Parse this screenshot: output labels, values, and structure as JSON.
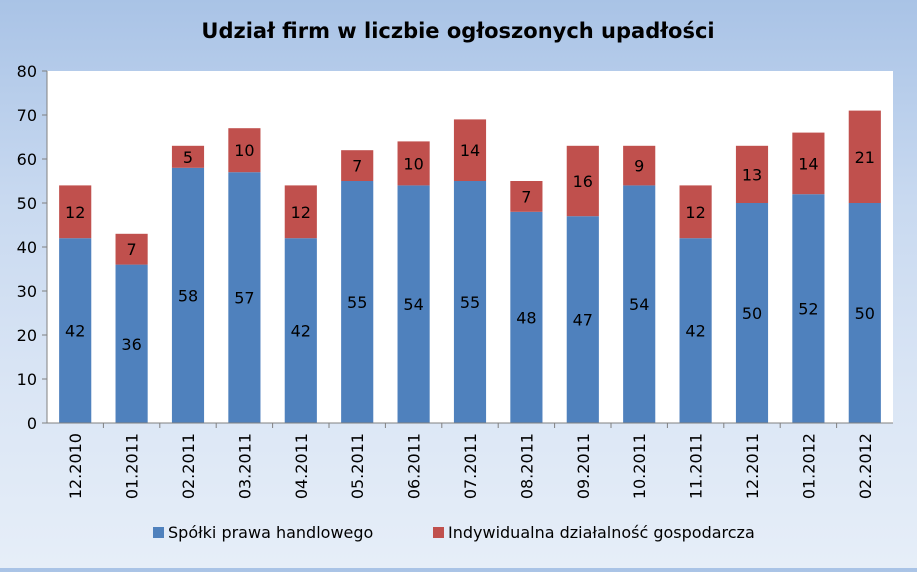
{
  "chart_data": {
    "type": "bar",
    "stacked": true,
    "title": "Udział firm w liczbie ogłoszonych upadłości",
    "categories": [
      "12.2010",
      "01.2011",
      "02.2011",
      "03.2011",
      "04.2011",
      "05.2011",
      "06.2011",
      "07.2011",
      "08.2011",
      "09.2011",
      "10.2011",
      "11.2011",
      "12.2011",
      "01.2012",
      "02.2012"
    ],
    "series": [
      {
        "name": "Spółki prawa handlowego",
        "color": "#4f81bd",
        "values": [
          42,
          36,
          58,
          57,
          42,
          55,
          54,
          55,
          48,
          47,
          54,
          42,
          50,
          52,
          50
        ]
      },
      {
        "name": "Indywidualna działalność gospodarcza",
        "color": "#c0504d",
        "values": [
          12,
          7,
          5,
          10,
          12,
          7,
          10,
          14,
          7,
          16,
          9,
          12,
          13,
          14,
          21
        ]
      }
    ],
    "ylim": [
      0,
      80
    ],
    "yticks": [
      0,
      10,
      20,
      30,
      40,
      50,
      60,
      70,
      80
    ],
    "xlabel": "",
    "ylabel": "",
    "grid": false,
    "legend_position": "bottom",
    "plot_background": "#ffffff"
  }
}
